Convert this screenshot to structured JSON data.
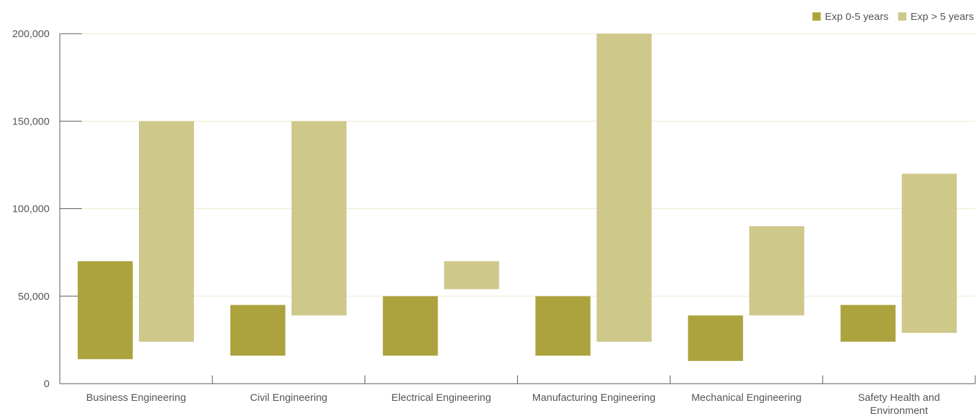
{
  "chart_data": {
    "type": "bar",
    "subtype": "floating-range",
    "title": "",
    "xlabel": "",
    "ylabel": "",
    "ylim": [
      0,
      200000
    ],
    "yticks": [
      0,
      50000,
      100000,
      150000,
      200000
    ],
    "ytick_labels": [
      "0",
      "50,000",
      "100,000",
      "150,000",
      "200,000"
    ],
    "grid": "horizontal",
    "legend_position": "top-right",
    "categories": [
      [
        "Business Engineering"
      ],
      [
        "Civil Engineering"
      ],
      [
        "Electrical Engineering"
      ],
      [
        "Manufacturing Engineering"
      ],
      [
        "Mechanical Engineering"
      ],
      [
        "Safety Health and",
        "Environment"
      ]
    ],
    "series": [
      {
        "name": "Exp 0-5 years",
        "color": "#aca33e",
        "ranges": [
          [
            14000,
            70000
          ],
          [
            16000,
            45000
          ],
          [
            16000,
            50000
          ],
          [
            16000,
            50000
          ],
          [
            13000,
            39000
          ],
          [
            24000,
            45000
          ]
        ]
      },
      {
        "name": "Exp > 5 years",
        "color": "#cfc88b",
        "ranges": [
          [
            24000,
            150000
          ],
          [
            39000,
            150000
          ],
          [
            54000,
            70000
          ],
          [
            24000,
            200000
          ],
          [
            39000,
            90000
          ],
          [
            29000,
            120000
          ]
        ]
      }
    ]
  }
}
